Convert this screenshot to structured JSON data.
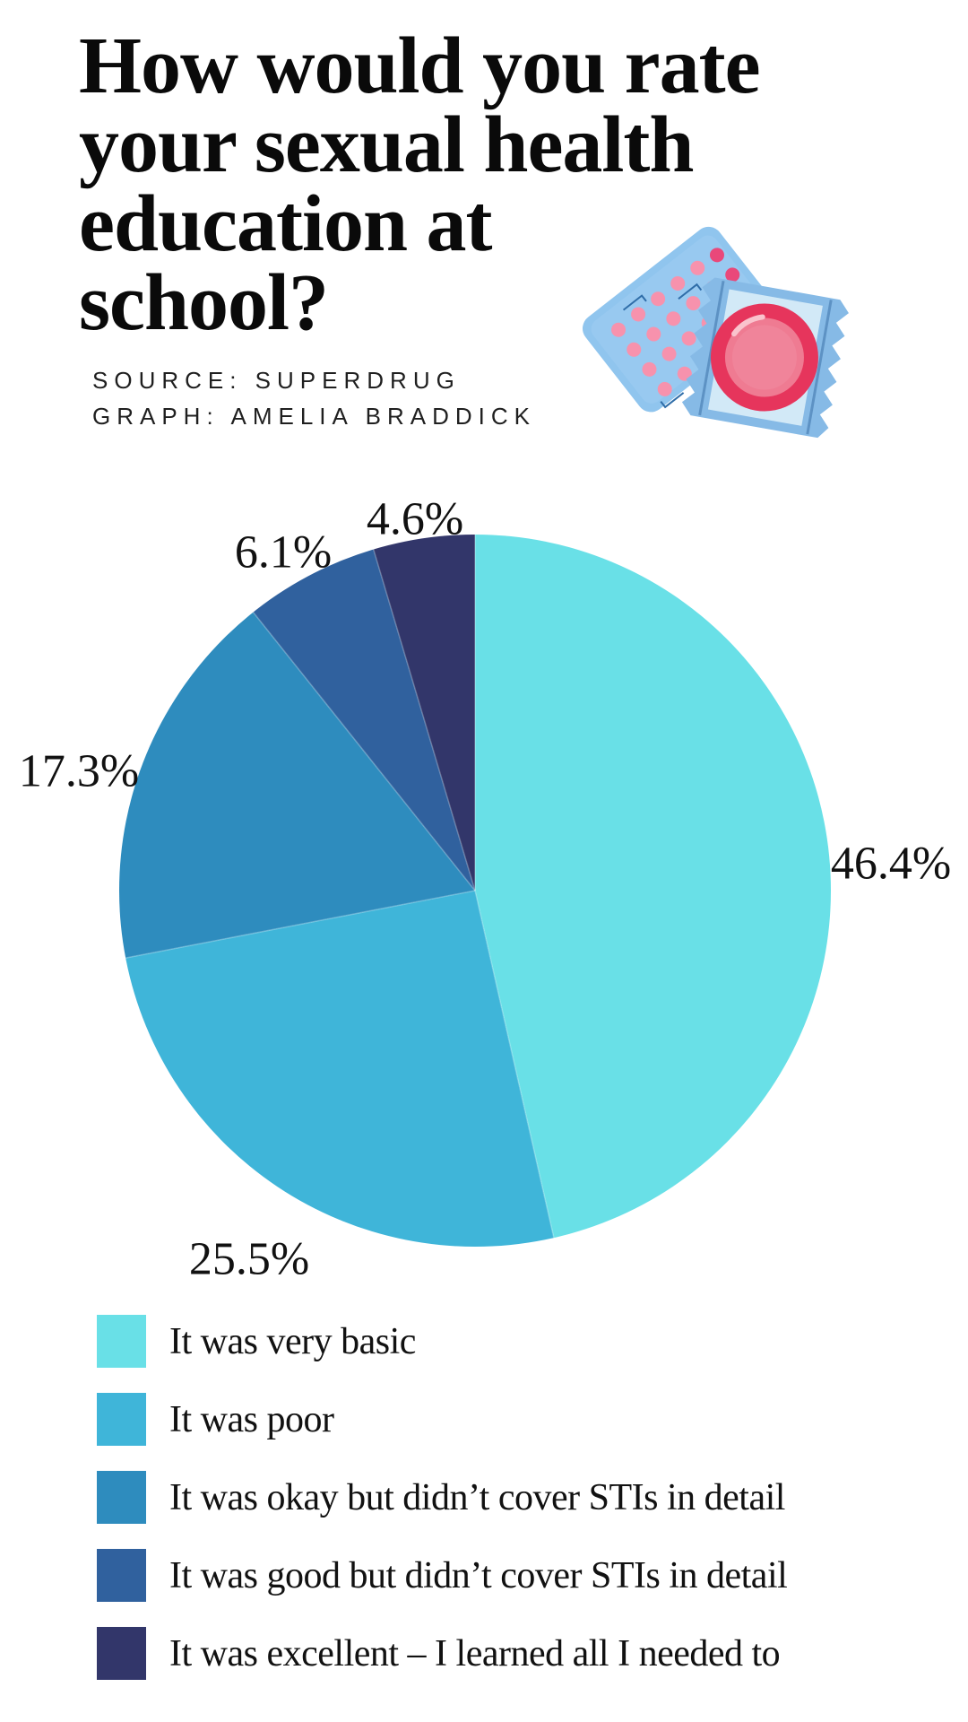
{
  "header": {
    "title": "How would you rate\nyour sexual health\neducation at\nschool?",
    "source_line1": "SOURCE: SUPERDRUG",
    "source_line2": "GRAPH: AMELIA BRADDICK"
  },
  "illustration": {
    "items": [
      "contraceptive-pill-pack",
      "condom-in-wrapper"
    ],
    "pack_blue": "#90c5ee",
    "pill_pink": "#f792ad",
    "pill_accent": "#e9487a",
    "wrapper_blue": "#86bae6",
    "wrapper_inner": "#d2e9f7",
    "ring_red": "#e6355c",
    "ring_pink": "#ef7b92"
  },
  "chart_data": {
    "type": "pie",
    "title": "How would you rate your sexual health education at school?",
    "categories": [
      "It was very basic",
      "It was poor",
      "It was okay but didn’t cover STIs in detail",
      "It was good but didn’t cover STIs in detail",
      "It was excellent – I learned all I needed to"
    ],
    "values": [
      46.4,
      25.5,
      17.3,
      6.1,
      4.6
    ],
    "value_labels": [
      "46.4%",
      "25.5%",
      "17.3%",
      "6.1%",
      "4.6%"
    ],
    "colors": [
      "#69E0E7",
      "#3FB5D9",
      "#2E8CBE",
      "#30619E",
      "#32366A"
    ],
    "start_angle_deg": 0,
    "direction": "clockwise",
    "legend_position": "bottom-left",
    "grid": false
  }
}
